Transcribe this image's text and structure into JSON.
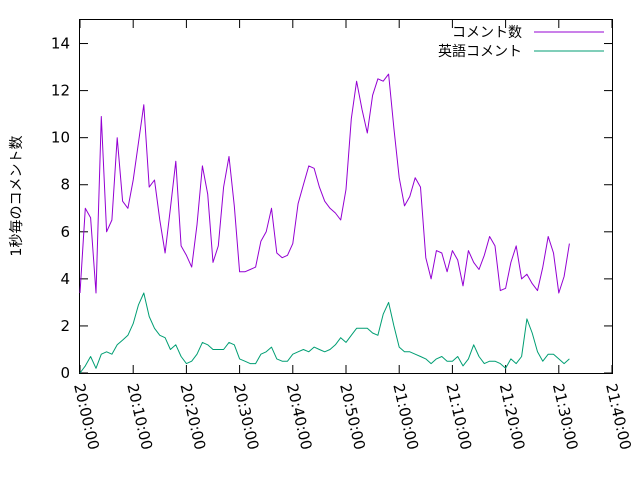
{
  "chart_data": {
    "type": "line",
    "title": "",
    "xlabel": "",
    "ylabel": "1秒毎のコメント数",
    "x_ticks": [
      "20:00:00",
      "20:10:00",
      "20:20:00",
      "20:30:00",
      "20:40:00",
      "20:50:00",
      "21:00:00",
      "21:10:00",
      "21:20:00",
      "21:30:00",
      "21:40:00"
    ],
    "xlim": [
      0,
      100
    ],
    "ylim": [
      0,
      15
    ],
    "y_ticks": [
      0,
      2,
      4,
      6,
      8,
      10,
      12,
      14
    ],
    "grid": false,
    "legend_position": "top-right",
    "x": [
      0,
      1,
      2,
      3,
      4,
      5,
      6,
      7,
      8,
      9,
      10,
      11,
      12,
      13,
      14,
      15,
      16,
      17,
      18,
      19,
      20,
      21,
      22,
      23,
      24,
      25,
      26,
      27,
      28,
      29,
      30,
      31,
      32,
      33,
      34,
      35,
      36,
      37,
      38,
      39,
      40,
      41,
      42,
      43,
      44,
      45,
      46,
      47,
      48,
      49,
      50,
      51,
      52,
      53,
      54,
      55,
      56,
      57,
      58,
      59,
      60,
      61,
      62,
      63,
      64,
      65,
      66,
      67,
      68,
      69,
      70,
      71,
      72,
      73,
      74,
      75,
      76,
      77,
      78,
      79,
      80,
      81,
      82,
      83,
      84,
      85,
      86,
      87,
      88,
      89,
      90,
      91,
      92
    ],
    "series": [
      {
        "name": "コメント数",
        "color": "#9400d3",
        "values": [
          3.4,
          7.0,
          6.6,
          3.4,
          10.9,
          6.0,
          6.5,
          10.0,
          7.3,
          7.0,
          8.2,
          9.8,
          11.4,
          7.9,
          8.2,
          6.5,
          5.1,
          7.0,
          9.0,
          5.4,
          5.0,
          4.5,
          6.3,
          8.8,
          7.6,
          4.7,
          5.4,
          7.9,
          9.2,
          7.1,
          4.3,
          4.3,
          4.4,
          4.5,
          5.6,
          6.0,
          7.0,
          5.1,
          4.9,
          5.0,
          5.5,
          7.2,
          8.0,
          8.8,
          8.7,
          7.9,
          7.3,
          7.0,
          6.8,
          6.5,
          7.8,
          10.8,
          12.4,
          11.2,
          10.2,
          11.8,
          12.5,
          12.4,
          12.7,
          10.4,
          8.3,
          7.1,
          7.5,
          8.3,
          7.9,
          4.9,
          4.0,
          5.2,
          5.1,
          4.3,
          5.2,
          4.8,
          3.7,
          5.2,
          4.7,
          4.4,
          5.0,
          5.8,
          5.4,
          3.5,
          3.6,
          4.7,
          5.4,
          4.0,
          4.2,
          3.8,
          3.5,
          4.5,
          5.8,
          5.1,
          3.4,
          4.1,
          5.5
        ]
      },
      {
        "name": "英語コメント",
        "color": "#009e73",
        "values": [
          0.0,
          0.3,
          0.7,
          0.2,
          0.8,
          0.9,
          0.8,
          1.2,
          1.4,
          1.6,
          2.1,
          2.9,
          3.4,
          2.4,
          1.9,
          1.6,
          1.5,
          1.0,
          1.2,
          0.7,
          0.4,
          0.5,
          0.8,
          1.3,
          1.2,
          1.0,
          1.0,
          1.0,
          1.3,
          1.2,
          0.6,
          0.5,
          0.4,
          0.4,
          0.8,
          0.9,
          1.1,
          0.6,
          0.5,
          0.5,
          0.8,
          0.9,
          1.0,
          0.9,
          1.1,
          1.0,
          0.9,
          1.0,
          1.2,
          1.5,
          1.3,
          1.6,
          1.9,
          1.9,
          1.9,
          1.7,
          1.6,
          2.5,
          3.0,
          2.0,
          1.1,
          0.9,
          0.9,
          0.8,
          0.7,
          0.6,
          0.4,
          0.6,
          0.7,
          0.5,
          0.5,
          0.7,
          0.3,
          0.6,
          1.2,
          0.7,
          0.4,
          0.5,
          0.5,
          0.4,
          0.2,
          0.6,
          0.4,
          0.7,
          2.3,
          1.7,
          0.9,
          0.5,
          0.8,
          0.8,
          0.6,
          0.4,
          0.6
        ]
      }
    ]
  }
}
